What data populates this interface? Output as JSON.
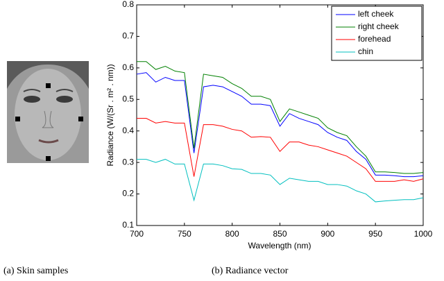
{
  "chart_data": {
    "type": "line",
    "xlabel": "Wavelength (nm)",
    "ylabel": "Radiance (W/(Sr . m² . nm))",
    "x": [
      700,
      710,
      720,
      730,
      740,
      750,
      760,
      770,
      780,
      790,
      800,
      810,
      820,
      830,
      840,
      850,
      860,
      870,
      880,
      890,
      900,
      910,
      920,
      930,
      940,
      950,
      960,
      970,
      980,
      990,
      1000
    ],
    "series": [
      {
        "name": "left cheek",
        "color": "#0000ff",
        "values": [
          0.58,
          0.585,
          0.555,
          0.57,
          0.56,
          0.56,
          0.33,
          0.54,
          0.545,
          0.54,
          0.525,
          0.51,
          0.485,
          0.485,
          0.48,
          0.415,
          0.455,
          0.44,
          0.43,
          0.42,
          0.395,
          0.38,
          0.37,
          0.335,
          0.31,
          0.26,
          0.26,
          0.258,
          0.255,
          0.255,
          0.258
        ]
      },
      {
        "name": "right cheek",
        "color": "#008000",
        "values": [
          0.62,
          0.62,
          0.595,
          0.605,
          0.59,
          0.585,
          0.345,
          0.58,
          0.575,
          0.57,
          0.55,
          0.535,
          0.51,
          0.51,
          0.5,
          0.43,
          0.47,
          0.46,
          0.45,
          0.44,
          0.41,
          0.395,
          0.385,
          0.35,
          0.32,
          0.27,
          0.27,
          0.268,
          0.265,
          0.265,
          0.268
        ]
      },
      {
        "name": "forehead",
        "color": "#ff0000",
        "values": [
          0.44,
          0.44,
          0.425,
          0.43,
          0.425,
          0.425,
          0.255,
          0.42,
          0.42,
          0.415,
          0.405,
          0.4,
          0.38,
          0.382,
          0.38,
          0.335,
          0.365,
          0.365,
          0.355,
          0.35,
          0.34,
          0.33,
          0.32,
          0.3,
          0.28,
          0.24,
          0.24,
          0.24,
          0.245,
          0.24,
          0.248
        ]
      },
      {
        "name": "chin",
        "color": "#00bfbf",
        "values": [
          0.31,
          0.31,
          0.3,
          0.31,
          0.295,
          0.295,
          0.18,
          0.295,
          0.295,
          0.29,
          0.28,
          0.278,
          0.265,
          0.265,
          0.26,
          0.23,
          0.25,
          0.245,
          0.24,
          0.24,
          0.23,
          0.23,
          0.225,
          0.21,
          0.2,
          0.175,
          0.178,
          0.18,
          0.182,
          0.182,
          0.188
        ]
      }
    ],
    "xlim": [
      700,
      1000
    ],
    "xticks": [
      700,
      750,
      800,
      850,
      900,
      950,
      1000
    ],
    "ylim": [
      0.1,
      0.8
    ],
    "yticks": [
      0.1,
      0.2,
      0.3,
      0.4,
      0.5,
      0.6,
      0.7,
      0.8
    ],
    "legend": "upper right"
  },
  "captions": [
    "(a) Skin samples",
    "(b) Radiance vector"
  ]
}
